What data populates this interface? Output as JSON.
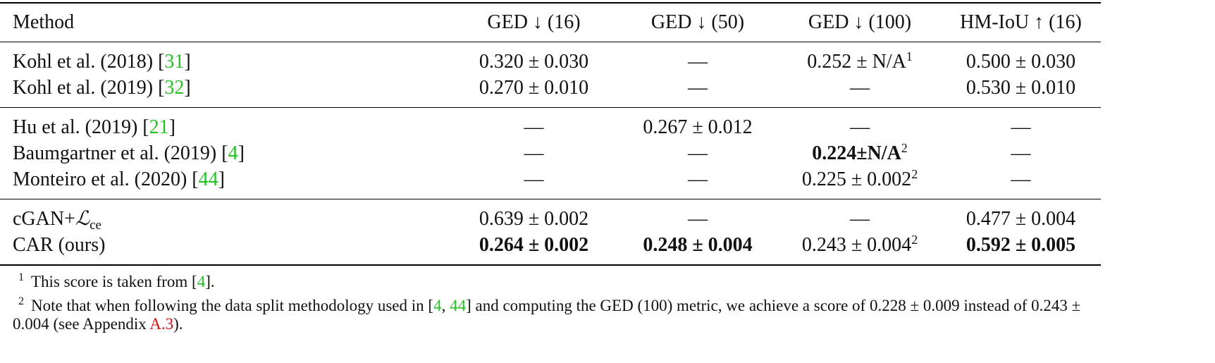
{
  "table": {
    "header": [
      "Method",
      "GED ↓ (16)",
      "GED ↓ (50)",
      "GED ↓ (100)",
      "HM-IoU ↑ (16)"
    ],
    "groups": [
      [
        [
          [
            {
              "text": "Kohl et al. (2018) ["
            },
            {
              "text": "31",
              "style": "cite"
            },
            {
              "text": "]"
            }
          ],
          [
            {
              "text": "0.320 ± 0.030"
            }
          ],
          [
            {
              "text": "—"
            }
          ],
          [
            {
              "text": "0.252 ± N/A"
            },
            {
              "text": "1",
              "style": "sup"
            }
          ],
          [
            {
              "text": "0.500 ± 0.030"
            }
          ]
        ],
        [
          [
            {
              "text": "Kohl et al. (2019) ["
            },
            {
              "text": "32",
              "style": "cite"
            },
            {
              "text": "]"
            }
          ],
          [
            {
              "text": "0.270 ± 0.010"
            }
          ],
          [
            {
              "text": "—"
            }
          ],
          [
            {
              "text": "—"
            }
          ],
          [
            {
              "text": "0.530 ± 0.010"
            }
          ]
        ]
      ],
      [
        [
          [
            {
              "text": "Hu et al. (2019) ["
            },
            {
              "text": "21",
              "style": "cite"
            },
            {
              "text": "]"
            }
          ],
          [
            {
              "text": "—"
            }
          ],
          [
            {
              "text": "0.267 ± 0.012"
            }
          ],
          [
            {
              "text": "—"
            }
          ],
          [
            {
              "text": "—"
            }
          ]
        ],
        [
          [
            {
              "text": "Baumgartner et al. (2019) ["
            },
            {
              "text": "4",
              "style": "cite"
            },
            {
              "text": "]"
            }
          ],
          [
            {
              "text": "—"
            }
          ],
          [
            {
              "text": "—"
            }
          ],
          [
            {
              "text": "0.224±N/A",
              "style": "bold"
            },
            {
              "text": "2",
              "style": "sup"
            }
          ],
          [
            {
              "text": "—"
            }
          ]
        ],
        [
          [
            {
              "text": "Monteiro et al. (2020) ["
            },
            {
              "text": "44",
              "style": "cite"
            },
            {
              "text": "]"
            }
          ],
          [
            {
              "text": "—"
            }
          ],
          [
            {
              "text": "—"
            }
          ],
          [
            {
              "text": "0.225 ± 0.002"
            },
            {
              "text": "2",
              "style": "sup"
            }
          ],
          [
            {
              "text": "—"
            }
          ]
        ]
      ],
      [
        [
          [
            {
              "text": "cGAN+"
            },
            {
              "text": "ℒ",
              "style": "math"
            },
            {
              "text": "ce",
              "style": "sub"
            }
          ],
          [
            {
              "text": "0.639 ± 0.002"
            }
          ],
          [
            {
              "text": "—"
            }
          ],
          [
            {
              "text": "—"
            }
          ],
          [
            {
              "text": "0.477 ± 0.004"
            }
          ]
        ],
        [
          [
            {
              "text": "CAR (ours)"
            }
          ],
          [
            {
              "text": "0.264 ± 0.002",
              "style": "bold"
            }
          ],
          [
            {
              "text": "0.248 ± 0.004",
              "style": "bold"
            }
          ],
          [
            {
              "text": "0.243 ± 0.004"
            },
            {
              "text": "2",
              "style": "sup"
            }
          ],
          [
            {
              "text": "0.592 ± 0.005",
              "style": "bold"
            }
          ]
        ]
      ]
    ]
  },
  "footnotes": [
    {
      "mark": "1",
      "parts": [
        {
          "text": "This score is taken from ["
        },
        {
          "text": "4",
          "style": "cite"
        },
        {
          "text": "]."
        }
      ]
    },
    {
      "mark": "2",
      "parts": [
        {
          "text": "Note that when following the data split methodology used in ["
        },
        {
          "text": "4",
          "style": "cite"
        },
        {
          "text": ", "
        },
        {
          "text": "44",
          "style": "cite"
        },
        {
          "text": "] and computing the GED (100) metric, we achieve a score of 0.228 ± 0.009 instead of 0.243 ± 0.004 (see Appendix "
        },
        {
          "text": "A.3",
          "style": "link"
        },
        {
          "text": ")."
        }
      ]
    }
  ]
}
